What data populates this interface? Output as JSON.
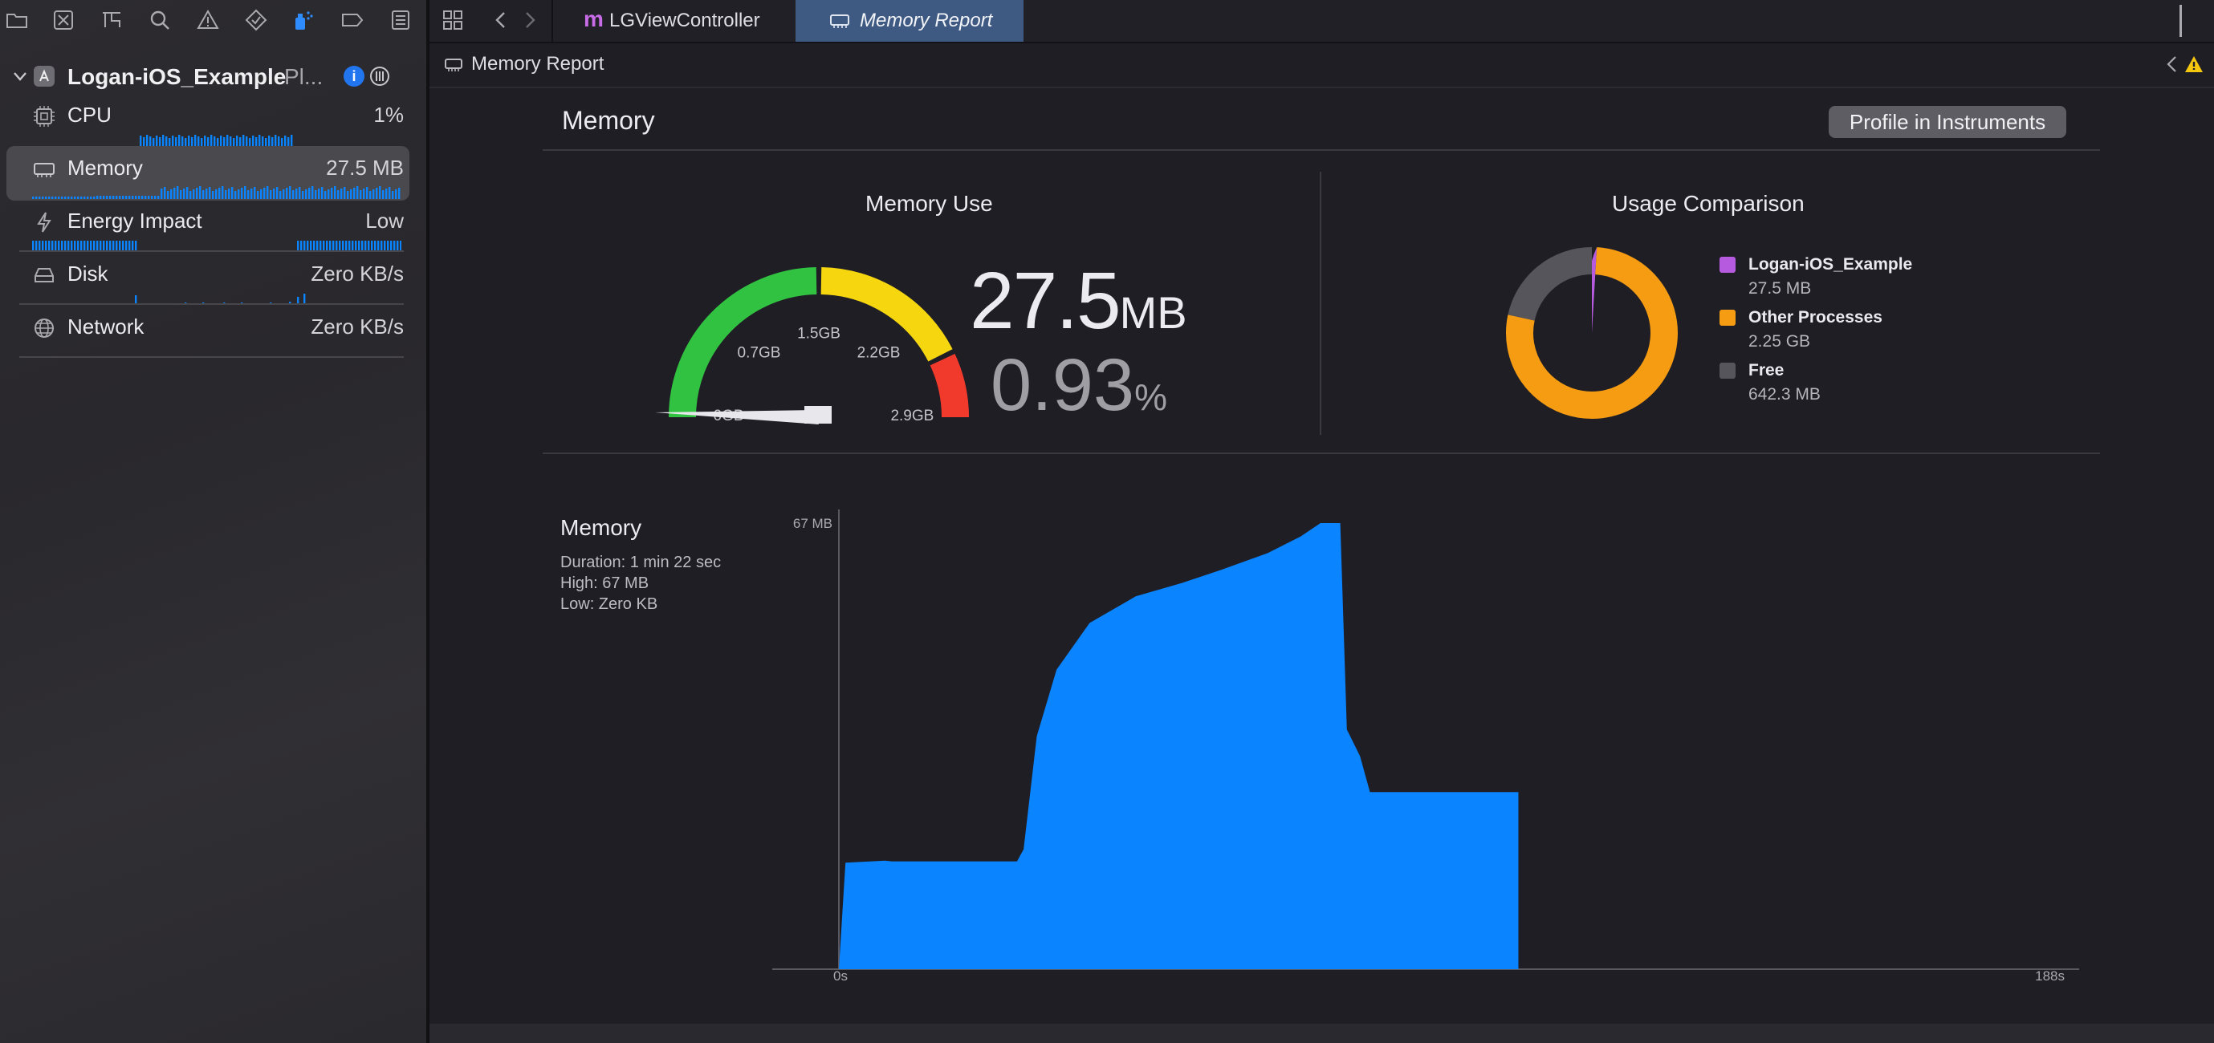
{
  "tabs": [
    {
      "label": "LGViewController",
      "icon": "m-file-icon",
      "active": false
    },
    {
      "label": "Memory Report",
      "icon": "memory-chip-icon",
      "active": true
    }
  ],
  "jumpbar": {
    "title": "Memory Report"
  },
  "sidebar": {
    "target": {
      "name": "Logan-iOS_Example",
      "suffix": "Pl..."
    },
    "gauges": [
      {
        "label": "CPU",
        "value": "1%",
        "icon": "cpu-icon"
      },
      {
        "label": "Memory",
        "value": "27.5 MB",
        "icon": "memory-chip-icon",
        "selected": true
      },
      {
        "label": "Energy Impact",
        "value": "Low",
        "icon": "bolt-icon"
      },
      {
        "label": "Disk",
        "value": "Zero KB/s",
        "icon": "disk-icon"
      },
      {
        "label": "Network",
        "value": "Zero KB/s",
        "icon": "globe-icon"
      }
    ]
  },
  "report": {
    "heading": "Memory",
    "profile_button": "Profile in Instruments",
    "memory_use": {
      "title": "Memory Use",
      "value": "27.5",
      "unit": "MB",
      "percent": "0.93",
      "percent_unit": "%",
      "gauge_fraction": 0.0093,
      "ticks": [
        "0GB",
        "0.7GB",
        "1.5GB",
        "2.2GB",
        "2.9GB"
      ]
    },
    "usage_comparison": {
      "title": "Usage Comparison",
      "items": [
        {
          "name": "Logan-iOS_Example",
          "value": "27.5 MB",
          "color": "#b65be0",
          "mb": 27.5
        },
        {
          "name": "Other Processes",
          "value": "2.25 GB",
          "color": "#f59c12",
          "mb": 2304
        },
        {
          "name": "Free",
          "value": "642.3 MB",
          "color": "#56555b",
          "mb": 642.3
        }
      ]
    },
    "timeline": {
      "title": "Memory",
      "duration": "Duration: 1 min 22 sec",
      "high": "High: 67 MB",
      "low": "Low: Zero KB",
      "ymax_label": "67 MB",
      "x_start_label": "0s",
      "x_end_label": "188s"
    }
  },
  "colors": {
    "accent": "#0a84ff",
    "fill": "#0a84ff",
    "green": "#32c242",
    "yellow": "#f6d60f",
    "red": "#f23a2c"
  },
  "chart_data": {
    "type": "area",
    "title": "Memory",
    "xlabel": "",
    "ylabel": "",
    "xlim": [
      0,
      188
    ],
    "ylim": [
      0,
      67
    ],
    "x": [
      0,
      1,
      7,
      8,
      27,
      28,
      30,
      33,
      38,
      45,
      52,
      58,
      65,
      70,
      73,
      76,
      77,
      79,
      80.5,
      86,
      86,
      103
    ],
    "y": [
      0,
      16,
      16.3,
      16.2,
      16.2,
      18,
      35,
      45,
      52,
      56,
      58,
      60,
      62.5,
      65,
      67,
      67,
      36,
      32,
      26.6,
      26.6,
      26.6,
      26.6
    ],
    "y_end_drop": 0
  }
}
